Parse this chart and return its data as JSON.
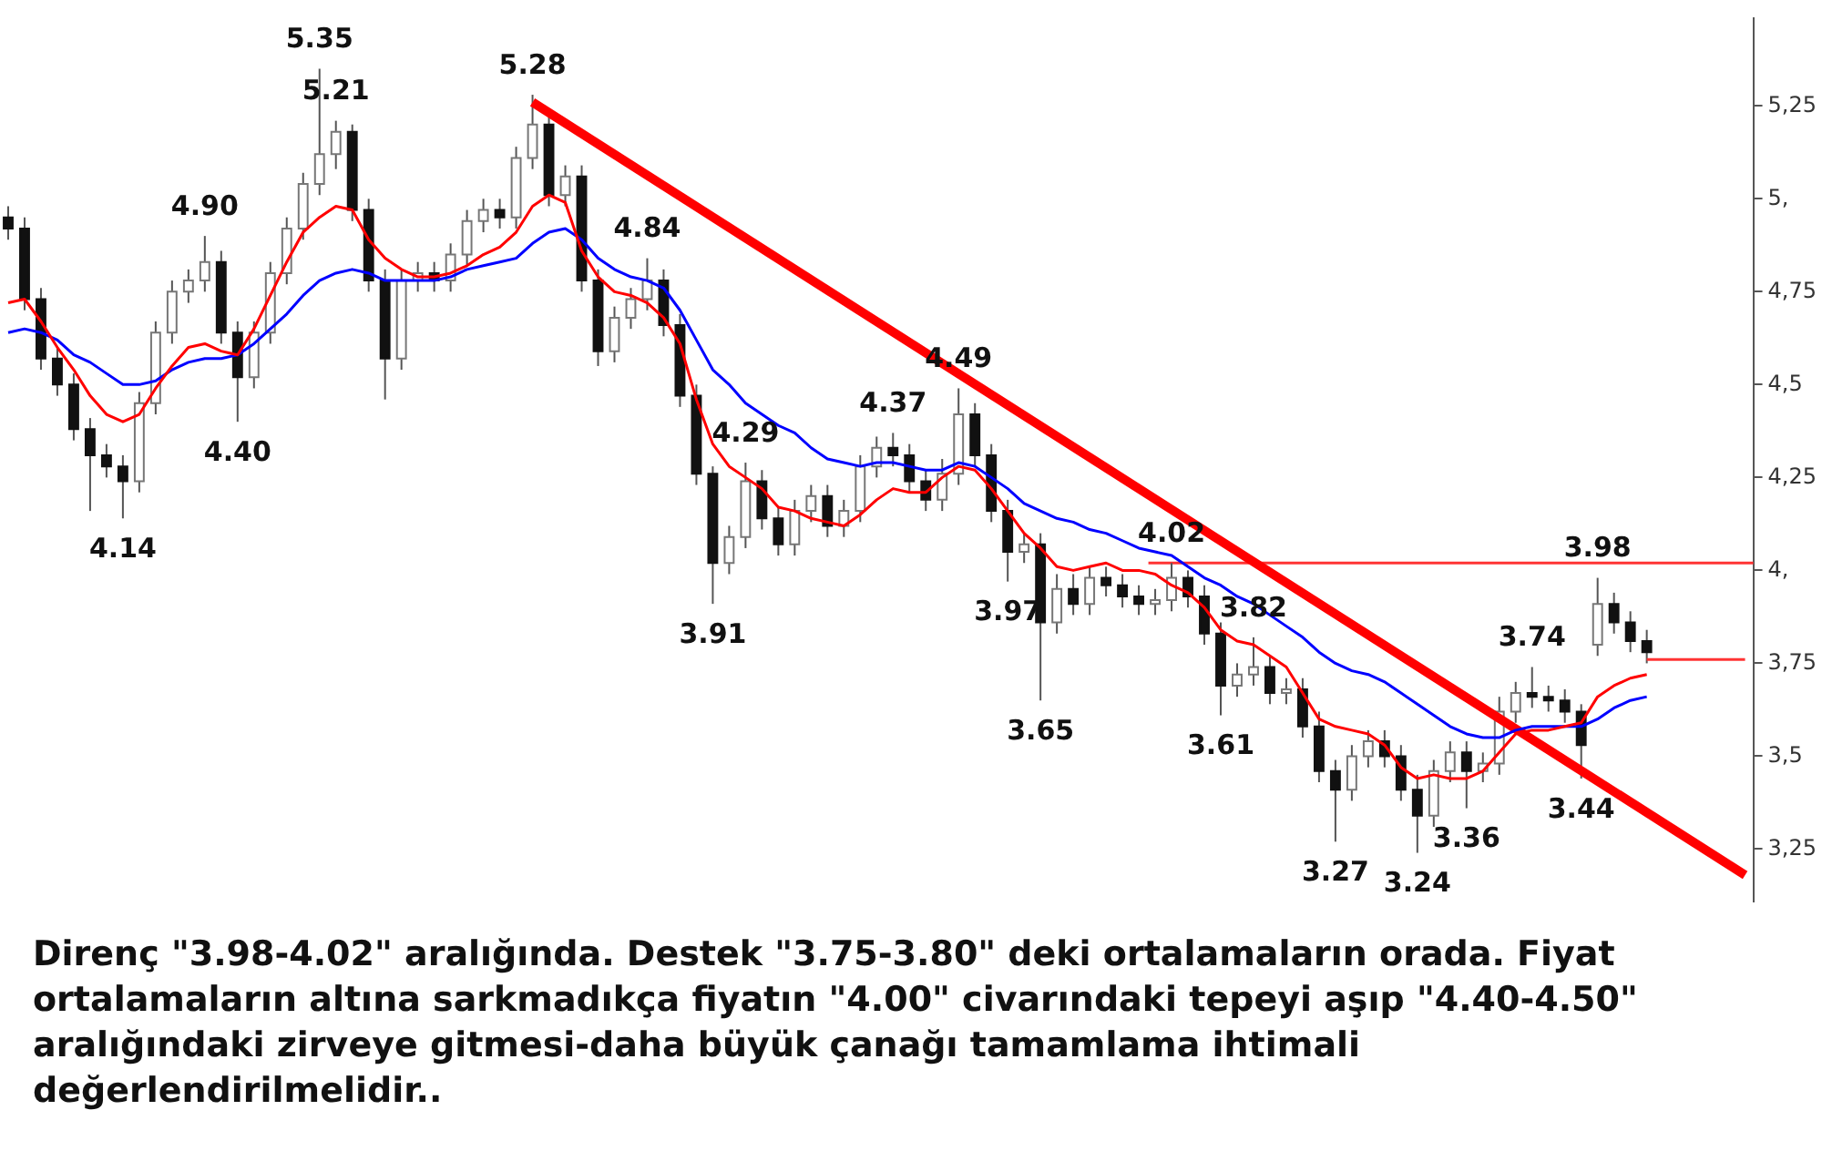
{
  "chart_data": {
    "type": "candlestick",
    "categories": [
      null,
      null,
      null,
      null,
      null,
      null,
      null,
      null,
      null,
      null,
      null,
      null,
      null,
      null,
      null,
      null,
      null,
      null,
      null,
      null,
      null,
      null,
      null,
      null,
      null,
      null,
      null,
      null,
      null,
      null,
      null,
      null,
      null,
      null,
      null,
      null,
      null,
      null,
      null,
      null,
      null,
      null,
      null,
      null,
      null,
      null,
      null,
      null,
      null,
      null,
      null,
      null,
      null,
      null,
      null,
      null,
      null,
      null,
      null,
      null,
      null,
      null,
      null,
      null,
      null,
      null,
      null,
      null,
      null,
      null,
      null,
      null,
      null,
      null,
      null,
      null,
      null,
      null,
      null,
      null,
      null,
      null,
      null,
      null,
      null,
      null,
      null,
      null,
      null,
      null,
      null,
      null,
      null,
      null,
      null,
      null,
      null,
      null,
      null,
      null,
      null,
      null,
      null,
      null,
      null,
      null,
      null
    ],
    "ohlc": [
      [
        4.95,
        4.98,
        4.89,
        4.92
      ],
      [
        4.92,
        4.95,
        4.7,
        4.73
      ],
      [
        4.73,
        4.76,
        4.54,
        4.57
      ],
      [
        4.57,
        4.6,
        4.47,
        4.5
      ],
      [
        4.5,
        4.53,
        4.35,
        4.38
      ],
      [
        4.38,
        4.41,
        4.16,
        4.31
      ],
      [
        4.31,
        4.34,
        4.25,
        4.28
      ],
      [
        4.28,
        4.31,
        4.14,
        4.24
      ],
      [
        4.24,
        4.48,
        4.21,
        4.45
      ],
      [
        4.45,
        4.67,
        4.42,
        4.64
      ],
      [
        4.64,
        4.78,
        4.61,
        4.75
      ],
      [
        4.75,
        4.81,
        4.72,
        4.78
      ],
      [
        4.78,
        4.9,
        4.75,
        4.83
      ],
      [
        4.83,
        4.86,
        4.61,
        4.64
      ],
      [
        4.64,
        4.67,
        4.4,
        4.52
      ],
      [
        4.52,
        4.67,
        4.49,
        4.64
      ],
      [
        4.64,
        4.83,
        4.61,
        4.8
      ],
      [
        4.8,
        4.95,
        4.77,
        4.92
      ],
      [
        4.92,
        5.07,
        4.89,
        5.04
      ],
      [
        5.04,
        5.35,
        5.01,
        5.12
      ],
      [
        5.12,
        5.21,
        5.08,
        5.18
      ],
      [
        5.18,
        5.2,
        4.94,
        4.97
      ],
      [
        4.97,
        5.0,
        4.75,
        4.78
      ],
      [
        4.78,
        4.81,
        4.46,
        4.57
      ],
      [
        4.57,
        4.81,
        4.54,
        4.78
      ],
      [
        4.78,
        4.83,
        4.75,
        4.8
      ],
      [
        4.8,
        4.83,
        4.75,
        4.78
      ],
      [
        4.78,
        4.88,
        4.75,
        4.85
      ],
      [
        4.85,
        4.97,
        4.82,
        4.94
      ],
      [
        4.94,
        5.0,
        4.91,
        4.97
      ],
      [
        4.97,
        5.0,
        4.92,
        4.95
      ],
      [
        4.95,
        5.14,
        4.92,
        5.11
      ],
      [
        5.11,
        5.28,
        5.08,
        5.2
      ],
      [
        5.2,
        5.23,
        4.98,
        5.01
      ],
      [
        5.01,
        5.09,
        4.98,
        5.06
      ],
      [
        5.06,
        5.09,
        4.75,
        4.78
      ],
      [
        4.78,
        4.81,
        4.55,
        4.59
      ],
      [
        4.59,
        4.71,
        4.56,
        4.68
      ],
      [
        4.68,
        4.76,
        4.65,
        4.73
      ],
      [
        4.73,
        4.84,
        4.7,
        4.78
      ],
      [
        4.78,
        4.81,
        4.63,
        4.66
      ],
      [
        4.66,
        4.69,
        4.44,
        4.47
      ],
      [
        4.47,
        4.5,
        4.23,
        4.26
      ],
      [
        4.26,
        4.28,
        3.91,
        4.02
      ],
      [
        4.02,
        4.12,
        3.99,
        4.09
      ],
      [
        4.09,
        4.29,
        4.06,
        4.24
      ],
      [
        4.24,
        4.27,
        4.11,
        4.14
      ],
      [
        4.14,
        4.17,
        4.04,
        4.07
      ],
      [
        4.07,
        4.19,
        4.04,
        4.16
      ],
      [
        4.16,
        4.23,
        4.13,
        4.2
      ],
      [
        4.2,
        4.23,
        4.09,
        4.12
      ],
      [
        4.12,
        4.19,
        4.09,
        4.16
      ],
      [
        4.16,
        4.31,
        4.13,
        4.28
      ],
      [
        4.28,
        4.36,
        4.25,
        4.33
      ],
      [
        4.33,
        4.37,
        4.28,
        4.31
      ],
      [
        4.31,
        4.34,
        4.21,
        4.24
      ],
      [
        4.24,
        4.27,
        4.16,
        4.19
      ],
      [
        4.19,
        4.3,
        4.16,
        4.26
      ],
      [
        4.26,
        4.49,
        4.23,
        4.42
      ],
      [
        4.42,
        4.45,
        4.28,
        4.31
      ],
      [
        4.31,
        4.34,
        4.13,
        4.16
      ],
      [
        4.16,
        4.19,
        3.97,
        4.05
      ],
      [
        4.05,
        4.1,
        4.02,
        4.07
      ],
      [
        4.07,
        4.1,
        3.65,
        3.86
      ],
      [
        3.86,
        3.99,
        3.83,
        3.95
      ],
      [
        3.95,
        3.99,
        3.88,
        3.91
      ],
      [
        3.91,
        4.01,
        3.88,
        3.98
      ],
      [
        3.98,
        4.01,
        3.93,
        3.96
      ],
      [
        3.96,
        3.99,
        3.9,
        3.93
      ],
      [
        3.93,
        3.96,
        3.88,
        3.91
      ],
      [
        3.91,
        3.95,
        3.88,
        3.92
      ],
      [
        3.92,
        4.02,
        3.89,
        3.98
      ],
      [
        3.98,
        4.0,
        3.9,
        3.93
      ],
      [
        3.93,
        3.96,
        3.8,
        3.83
      ],
      [
        3.83,
        3.86,
        3.61,
        3.69
      ],
      [
        3.69,
        3.75,
        3.66,
        3.72
      ],
      [
        3.72,
        3.82,
        3.69,
        3.74
      ],
      [
        3.74,
        3.77,
        3.64,
        3.67
      ],
      [
        3.67,
        3.71,
        3.64,
        3.68
      ],
      [
        3.68,
        3.71,
        3.55,
        3.58
      ],
      [
        3.58,
        3.62,
        3.43,
        3.46
      ],
      [
        3.46,
        3.49,
        3.27,
        3.41
      ],
      [
        3.41,
        3.53,
        3.38,
        3.5
      ],
      [
        3.5,
        3.57,
        3.47,
        3.54
      ],
      [
        3.54,
        3.57,
        3.47,
        3.5
      ],
      [
        3.5,
        3.53,
        3.38,
        3.41
      ],
      [
        3.41,
        3.45,
        3.24,
        3.34
      ],
      [
        3.34,
        3.49,
        3.31,
        3.46
      ],
      [
        3.46,
        3.54,
        3.43,
        3.51
      ],
      [
        3.51,
        3.54,
        3.36,
        3.46
      ],
      [
        3.46,
        3.51,
        3.43,
        3.48
      ],
      [
        3.48,
        3.66,
        3.45,
        3.62
      ],
      [
        3.62,
        3.7,
        3.59,
        3.67
      ],
      [
        3.67,
        3.74,
        3.63,
        3.66
      ],
      [
        3.66,
        3.69,
        3.62,
        3.65
      ],
      [
        3.65,
        3.68,
        3.59,
        3.62
      ],
      [
        3.62,
        3.64,
        3.44,
        3.53
      ],
      [
        3.8,
        3.98,
        3.77,
        3.91
      ],
      [
        3.91,
        3.94,
        3.83,
        3.86
      ],
      [
        3.86,
        3.89,
        3.78,
        3.81
      ],
      [
        3.81,
        3.84,
        3.75,
        3.78
      ],
      null,
      null,
      null,
      null,
      null,
      null
    ],
    "series": [
      {
        "type": "line",
        "color": "#ff0000",
        "values": [
          4.72,
          4.73,
          4.67,
          4.6,
          4.54,
          4.47,
          4.42,
          4.4,
          4.42,
          4.49,
          4.55,
          4.6,
          4.61,
          4.59,
          4.58,
          4.65,
          4.74,
          4.83,
          4.91,
          4.95,
          4.98,
          4.97,
          4.89,
          4.84,
          4.81,
          4.79,
          4.79,
          4.8,
          4.82,
          4.85,
          4.87,
          4.91,
          4.98,
          5.01,
          4.99,
          4.86,
          4.79,
          4.75,
          4.74,
          4.72,
          4.68,
          4.61,
          4.46,
          4.34,
          4.28,
          4.25,
          4.22,
          4.17,
          4.16,
          4.14,
          4.13,
          4.12,
          4.15,
          4.19,
          4.22,
          4.21,
          4.21,
          4.25,
          4.28,
          4.27,
          4.22,
          4.16,
          4.1,
          4.06,
          4.01,
          4.0,
          4.01,
          4.02,
          4.0,
          4.0,
          3.99,
          3.96,
          3.94,
          3.9,
          3.84,
          3.81,
          3.8,
          3.77,
          3.74,
          3.67,
          3.6,
          3.58,
          3.57,
          3.56,
          3.53,
          3.47,
          3.44,
          3.45,
          3.44,
          3.44,
          3.46,
          3.51,
          3.56,
          3.57,
          3.57,
          3.58,
          3.59,
          3.66,
          3.69,
          3.71,
          3.72,
          null,
          null,
          null,
          null,
          null,
          null
        ]
      },
      {
        "type": "line",
        "color": "#0000ff",
        "values": [
          4.64,
          4.65,
          4.64,
          4.62,
          4.58,
          4.56,
          4.53,
          4.5,
          4.5,
          4.51,
          4.54,
          4.56,
          4.57,
          4.57,
          4.58,
          4.61,
          4.65,
          4.69,
          4.74,
          4.78,
          4.8,
          4.81,
          4.8,
          4.78,
          4.78,
          4.78,
          4.78,
          4.79,
          4.81,
          4.82,
          4.83,
          4.84,
          4.88,
          4.91,
          4.92,
          4.89,
          4.84,
          4.81,
          4.79,
          4.78,
          4.76,
          4.7,
          4.62,
          4.54,
          4.5,
          4.45,
          4.42,
          4.39,
          4.37,
          4.33,
          4.3,
          4.29,
          4.28,
          4.29,
          4.29,
          4.28,
          4.27,
          4.27,
          4.29,
          4.28,
          4.25,
          4.22,
          4.18,
          4.16,
          4.14,
          4.13,
          4.11,
          4.1,
          4.08,
          4.06,
          4.05,
          4.04,
          4.01,
          3.98,
          3.96,
          3.93,
          3.91,
          3.88,
          3.85,
          3.82,
          3.78,
          3.75,
          3.73,
          3.72,
          3.7,
          3.67,
          3.64,
          3.61,
          3.58,
          3.56,
          3.55,
          3.55,
          3.57,
          3.58,
          3.58,
          3.58,
          3.58,
          3.6,
          3.63,
          3.65,
          3.66,
          null,
          null,
          null,
          null,
          null,
          null
        ]
      },
      {
        "type": "line",
        "color": "#ff0000",
        "values": [
          null,
          null,
          null,
          null,
          null,
          null,
          null,
          null,
          null,
          null,
          null,
          null,
          null,
          null,
          null,
          null,
          null,
          null,
          null,
          null,
          null,
          null,
          null,
          null,
          null,
          null,
          null,
          null,
          null,
          null,
          null,
          null,
          5.26,
          null,
          null,
          null,
          null,
          null,
          null,
          null,
          null,
          null,
          null,
          null,
          null,
          null,
          null,
          null,
          null,
          null,
          null,
          null,
          null,
          null,
          null,
          null,
          null,
          null,
          null,
          null,
          null,
          null,
          null,
          null,
          null,
          null,
          null,
          null,
          null,
          null,
          null,
          null,
          null,
          null,
          null,
          null,
          null,
          null,
          null,
          null,
          null,
          null,
          null,
          null,
          null,
          null,
          null,
          null,
          null,
          null,
          null,
          null,
          null,
          null,
          null,
          null,
          null,
          null,
          null,
          null,
          null,
          null,
          null,
          null,
          null,
          null,
          3.18
        ]
      },
      {
        "type": "line",
        "color": "#ff3333",
        "values": [
          null,
          null,
          null,
          null,
          null,
          null,
          null,
          null,
          null,
          null,
          null,
          null,
          null,
          null,
          null,
          null,
          null,
          null,
          null,
          null,
          null,
          null,
          null,
          null,
          null,
          null,
          null,
          null,
          null,
          null,
          null,
          null,
          null,
          null,
          null,
          null,
          null,
          null,
          null,
          null,
          null,
          null,
          null,
          null,
          null,
          null,
          null,
          null,
          null,
          null,
          null,
          null,
          null,
          null,
          null,
          null,
          null,
          null,
          null,
          null,
          null,
          null,
          null,
          null,
          null,
          null,
          null,
          null,
          null,
          null,
          null,
          null,
          null,
          null,
          null,
          null,
          null,
          null,
          null,
          null,
          null,
          null,
          null,
          null,
          null,
          null,
          null,
          null,
          null,
          null,
          null,
          null,
          null,
          null,
          null,
          null,
          null,
          null,
          null,
          null,
          3.76,
          3.76,
          3.76,
          3.76,
          3.76,
          3.76,
          3.76
        ]
      }
    ],
    "ylim": [
      3.11,
      5.485
    ],
    "yticks": [
      {
        "value": 3.25,
        "label": "3,25"
      },
      {
        "value": 3.5,
        "label": "3,5"
      },
      {
        "value": 3.75,
        "label": "3,75"
      },
      {
        "value": 4,
        "label": "4,"
      },
      {
        "value": 4.25,
        "label": "4,25"
      },
      {
        "value": 4.5,
        "label": "4,5"
      },
      {
        "value": 4.75,
        "label": "4,75"
      },
      {
        "value": 5,
        "label": "5,"
      },
      {
        "value": 5.25,
        "label": "5,25"
      }
    ],
    "ref_lines": [
      {
        "axis": "y",
        "value": 4.02,
        "color": "#ff3333"
      }
    ],
    "annotations": [
      {
        "text": "5.35",
        "y": 5.35
      },
      {
        "text": "5.21",
        "y": 5.21
      },
      {
        "text": "5.28",
        "y": 5.28
      },
      {
        "text": "4.90",
        "y": 4.9
      },
      {
        "text": "4.84",
        "y": 4.84
      },
      {
        "text": "4.49",
        "y": 4.49
      },
      {
        "text": "4.37",
        "y": 4.37
      },
      {
        "text": "4.29",
        "y": 4.29
      },
      {
        "text": "4.02",
        "y": 4.02
      },
      {
        "text": "3.98",
        "y": 3.98
      },
      {
        "text": "3.82",
        "y": 3.82
      },
      {
        "text": "3.74",
        "y": 3.74
      },
      {
        "text": "4.14",
        "y": 4.14
      },
      {
        "text": "4.40",
        "y": 4.4
      },
      {
        "text": "3.91",
        "y": 3.91
      },
      {
        "text": "3.97",
        "y": 3.97
      },
      {
        "text": "3.65",
        "y": 3.65
      },
      {
        "text": "3.61",
        "y": 3.61
      },
      {
        "text": "3.27",
        "y": 3.27
      },
      {
        "text": "3.24",
        "y": 3.24
      },
      {
        "text": "3.36",
        "y": 3.36
      },
      {
        "text": "3.44",
        "y": 3.44
      },
      "Direnç \"3.98-4.02\" aralığında. Destek \"3.75-3.80\" deki ortalamaların orada. Fiyat ortalamaların altına sarkmadıkça fiyatın \"4.00\" civarındaki tepeyi aşıp \"4.40-4.50\" aralığındaki zirveye gitmesi-daha büyük çanağı tamamlama ihtimali değerlendirilmelidir.."
    ]
  }
}
